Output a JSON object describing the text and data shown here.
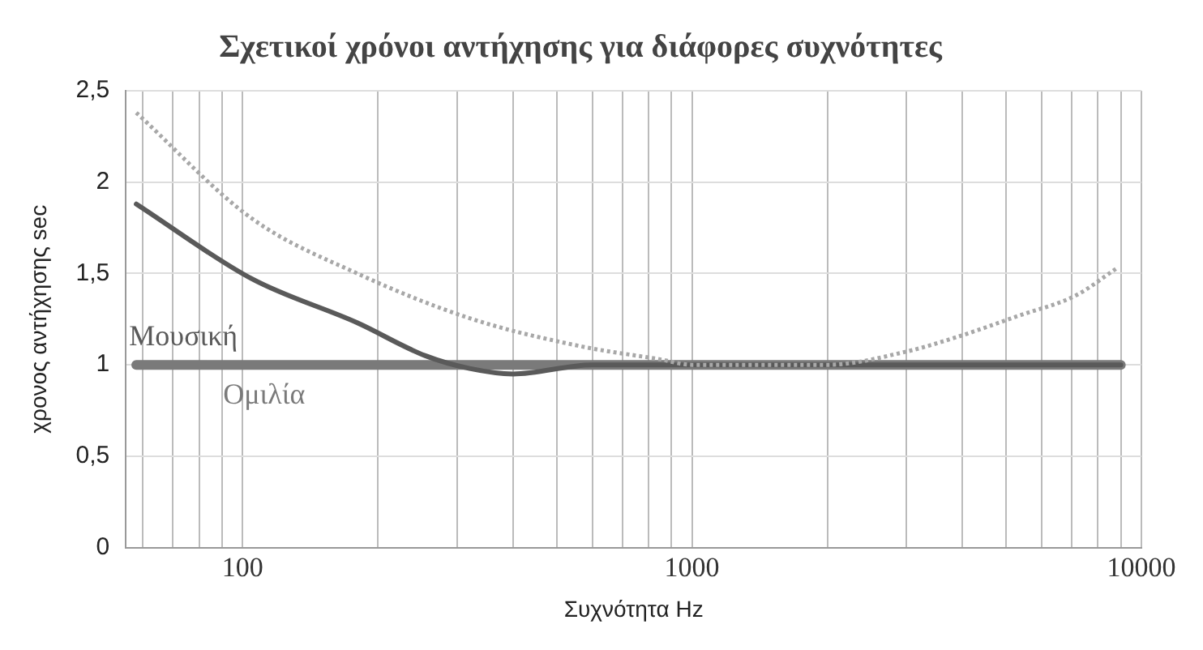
{
  "chart_data": {
    "type": "line",
    "title": "Σχετικοί χρόνοι αντήχησης για διάφορες συχνότητες",
    "xlabel": "Συχνότητα Hz",
    "ylabel": "χρονος αντήχησης sec",
    "log": "x",
    "grid": true,
    "legend": false,
    "marker": "none",
    "xlim": [
      55,
      10000
    ],
    "ylim": [
      0,
      2.5
    ],
    "xticks": [
      {
        "value": 60,
        "label": null
      },
      {
        "value": 70,
        "label": null
      },
      {
        "value": 80,
        "label": null
      },
      {
        "value": 90,
        "label": null
      },
      100,
      {
        "value": 200,
        "label": null
      },
      {
        "value": 300,
        "label": null
      },
      {
        "value": 400,
        "label": null
      },
      {
        "value": 500,
        "label": null
      },
      {
        "value": 600,
        "label": null
      },
      {
        "value": 700,
        "label": null
      },
      {
        "value": 800,
        "label": null
      },
      {
        "value": 900,
        "label": null
      },
      1000,
      {
        "value": 2000,
        "label": null
      },
      {
        "value": 3000,
        "label": null
      },
      {
        "value": 4000,
        "label": null
      },
      {
        "value": 5000,
        "label": null
      },
      {
        "value": 6000,
        "label": null
      },
      {
        "value": 7000,
        "label": null
      },
      {
        "value": 8000,
        "label": null
      },
      {
        "value": 9000,
        "label": null
      },
      10000
    ],
    "yticks": [
      0,
      {
        "value": 0.5,
        "label": "0,5"
      },
      1,
      {
        "value": 1.5,
        "label": "1,5"
      },
      2,
      {
        "value": 2.5,
        "label": "2,5"
      }
    ],
    "series": [
      {
        "color": "#a8a8a8",
        "line_style": "dotted",
        "x": [
          58,
          105,
          180,
          325,
          570,
          850,
          1000,
          2000,
          2970,
          3860,
          5350,
          7150,
          8830
        ],
        "values": [
          2.38,
          1.8,
          1.5,
          1.25,
          1.1,
          1.03,
          1.0,
          1.0,
          1.07,
          1.15,
          1.27,
          1.38,
          1.53
        ]
      },
      {
        "name": "Μουσική",
        "color": "#5a5a5a",
        "line_style": "solid",
        "x": [
          58,
          105,
          180,
          255,
          320,
          400,
          600,
          1000,
          9000
        ],
        "values": [
          1.88,
          1.47,
          1.23,
          1.05,
          0.98,
          0.95,
          1.0,
          1.0,
          1.0
        ]
      },
      {
        "name": "Ομιλία",
        "color": "#7a7a7a",
        "line_style": "solid",
        "x": [
          58,
          9000
        ],
        "values": [
          1.0,
          1.0
        ]
      }
    ]
  }
}
